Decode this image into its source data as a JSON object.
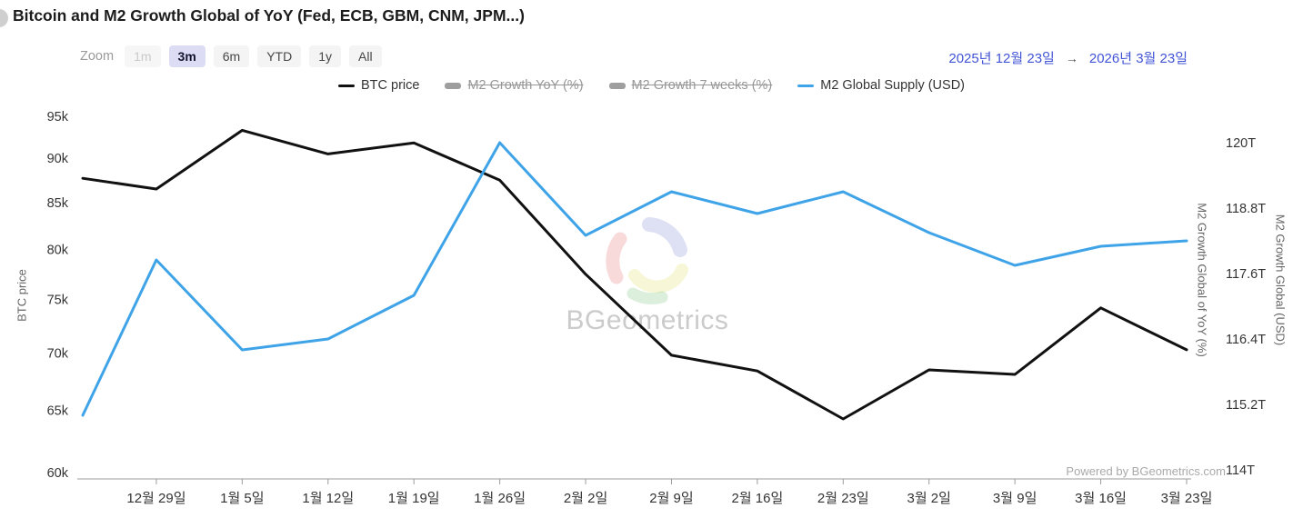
{
  "header": {
    "title": "Bitcoin and M2 Growth Global of YoY (Fed, ECB, GBM, CNM, JPM...)"
  },
  "toolbar": {
    "zoom_label": "Zoom",
    "buttons": [
      {
        "label": "1m",
        "state": "disabled"
      },
      {
        "label": "3m",
        "state": "selected"
      },
      {
        "label": "6m",
        "state": "normal"
      },
      {
        "label": "YTD",
        "state": "normal"
      },
      {
        "label": "1y",
        "state": "normal"
      },
      {
        "label": "All",
        "state": "normal"
      }
    ]
  },
  "date_range": {
    "start": "2025년 12월 23일",
    "arrow": "→",
    "end": "2026년 3월 23일"
  },
  "legend": [
    {
      "label": "BTC price",
      "marker_color": "#111111",
      "struck": false
    },
    {
      "label": "M2 Growth YoY (%)",
      "marker_color": "#9e9e9e",
      "struck": true
    },
    {
      "label": "M2 Growth 7 weeks (%)",
      "marker_color": "#9e9e9e",
      "struck": true
    },
    {
      "label": "M2 Global Supply (USD)",
      "marker_color": "#3fa3e8",
      "struck": false
    }
  ],
  "watermark": {
    "text": "BGeometrics"
  },
  "footer": {
    "powered_by": "Powered by BGeometrics.com"
  },
  "colors": {
    "btc_line": "#111111",
    "m2_line": "#3fa3e8",
    "accent_date": "#4254d6",
    "axis_line": "#9b9b9b"
  },
  "chart_data": {
    "type": "line",
    "title": "Bitcoin and M2 Growth Global of YoY (Fed, ECB, GBM, CNM, JPM...)",
    "x_tick_labels": [
      "12월 29일",
      "1월 5일",
      "1월 12일",
      "1월 19일",
      "1월 26일",
      "2월 2일",
      "2월 9일",
      "2월 16일",
      "2월 23일",
      "3월 2일",
      "3월 9일",
      "3월 16일",
      "3월 23일"
    ],
    "x_tick_day_offsets": [
      6,
      13,
      20,
      27,
      34,
      41,
      48,
      55,
      62,
      69,
      76,
      83,
      90
    ],
    "point_day_offsets": [
      0,
      6,
      13,
      20,
      27,
      34,
      41,
      48,
      55,
      62,
      69,
      76,
      83,
      90
    ],
    "series": [
      {
        "name": "BTC price",
        "axis": "left",
        "color": "#111111",
        "values": [
          87700,
          86500,
          93300,
          90500,
          91800,
          87500,
          77500,
          69800,
          68400,
          64300,
          68500,
          68100,
          74200,
          70300
        ]
      },
      {
        "name": "M2 Global Supply (USD)",
        "axis": "right",
        "color": "#3fa3e8",
        "unit": "T",
        "values": [
          115.0,
          117.85,
          116.2,
          116.4,
          117.2,
          120.0,
          118.3,
          119.1,
          118.7,
          119.1,
          118.35,
          117.75,
          118.1,
          118.2
        ]
      }
    ],
    "hidden_series": [
      "M2 Growth YoY (%)",
      "M2 Growth 7 weeks (%)"
    ],
    "left_axis": {
      "title": "BTC price",
      "scale": "log",
      "tick_labels": [
        "95k",
        "90k",
        "85k",
        "80k",
        "75k",
        "70k",
        "65k",
        "60k"
      ],
      "tick_values": [
        95000,
        90000,
        85000,
        80000,
        75000,
        70000,
        65000,
        60000
      ],
      "range": [
        60000,
        95000
      ]
    },
    "right_axis": {
      "title_inner": "M2 Growth Global of YoY (%)",
      "title_outer": "M2 Growth Global (USD)",
      "scale": "linear",
      "tick_labels": [
        "120T",
        "118.8T",
        "117.6T",
        "116.4T",
        "115.2T",
        "114T"
      ],
      "tick_values": [
        120,
        118.8,
        117.6,
        116.4,
        115.2,
        114
      ],
      "range": [
        114,
        120
      ]
    },
    "grid": false,
    "legend_position": "top"
  }
}
